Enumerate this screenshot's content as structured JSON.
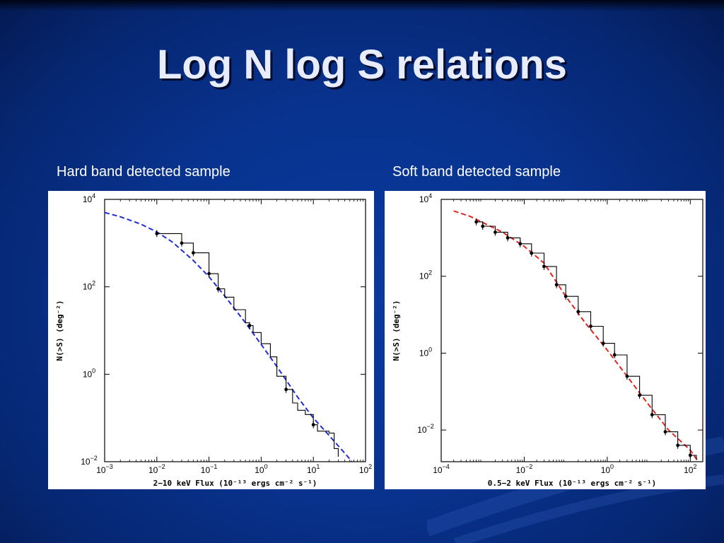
{
  "slide": {
    "title": "Log N log S relations",
    "captions": [
      "Hard band detected sample",
      "Soft band detected sample"
    ]
  },
  "colors": {
    "background": "#08338f",
    "title": "#e8ecff",
    "hard_fit": "#1f2bd6",
    "soft_fit": "#e0241c",
    "data": "#000000"
  },
  "chart_data": [
    {
      "type": "line",
      "scale": "log-log",
      "xlabel": "2−10 keV Flux (10⁻¹³ ergs cm⁻² s⁻¹)",
      "ylabel": "N(>S) (deg⁻²)",
      "xlim": [
        0.001,
        100
      ],
      "ylim": [
        0.01,
        10000
      ],
      "x_ticks": [
        {
          "v": 0.001,
          "base": "10",
          "exp": "−3"
        },
        {
          "v": 0.01,
          "base": "10",
          "exp": "−2"
        },
        {
          "v": 0.1,
          "base": "10",
          "exp": "−1"
        },
        {
          "v": 1,
          "base": "10",
          "exp": "0"
        },
        {
          "v": 10,
          "base": "10",
          "exp": "1"
        },
        {
          "v": 100,
          "base": "10",
          "exp": "2"
        }
      ],
      "y_ticks": [
        {
          "v": 0.01,
          "base": "10",
          "exp": "−2"
        },
        {
          "v": 1,
          "base": "10",
          "exp": "0"
        },
        {
          "v": 100,
          "base": "10",
          "exp": "2"
        },
        {
          "v": 10000,
          "base": "10",
          "exp": "4"
        }
      ],
      "series": [
        {
          "kind": "fit-dashed",
          "color": "#1f2bd6",
          "x": [
            0.001,
            0.002,
            0.005,
            0.01,
            0.02,
            0.05,
            0.1,
            0.2,
            0.5,
            1,
            2,
            5,
            10,
            20,
            50,
            70
          ],
          "y": [
            5000,
            4000,
            2700,
            1800,
            1050,
            400,
            170,
            62,
            15,
            4.8,
            1.5,
            0.3,
            0.1,
            0.04,
            0.0115,
            0.007
          ]
        },
        {
          "kind": "data-step",
          "color": "#000000",
          "x": [
            0.01,
            0.03,
            0.05,
            0.1,
            0.15,
            0.2,
            0.3,
            0.5,
            0.6,
            0.7,
            1,
            1.5,
            2,
            3,
            4,
            5,
            7,
            10,
            12,
            15,
            20,
            25,
            30
          ],
          "y": [
            1650,
            1000,
            600,
            200,
            90,
            58,
            30,
            15,
            13,
            9,
            5,
            2.5,
            0.9,
            0.45,
            0.22,
            0.15,
            0.12,
            0.07,
            0.05,
            0.05,
            0.045,
            0.02,
            0.013
          ]
        },
        {
          "kind": "data-points",
          "color": "#000000",
          "x": [
            0.01,
            0.03,
            0.05,
            0.1,
            0.15,
            0.6,
            3,
            10
          ],
          "y": [
            1650,
            1000,
            600,
            200,
            90,
            13,
            0.45,
            0.07
          ]
        }
      ]
    },
    {
      "type": "line",
      "scale": "log-log",
      "xlabel": "0.5−2 keV Flux (10⁻¹³ ergs cm⁻² s⁻¹)",
      "ylabel": "N(>S) (deg⁻²)",
      "xlim": [
        0.0001,
        200
      ],
      "ylim": [
        0.0015,
        10000
      ],
      "x_ticks": [
        {
          "v": 0.0001,
          "base": "10",
          "exp": "−4"
        },
        {
          "v": 0.01,
          "base": "10",
          "exp": "−2"
        },
        {
          "v": 1,
          "base": "10",
          "exp": "0"
        },
        {
          "v": 100,
          "base": "10",
          "exp": "2"
        }
      ],
      "y_ticks": [
        {
          "v": 0.01,
          "base": "10",
          "exp": "−2"
        },
        {
          "v": 1,
          "base": "10",
          "exp": "0"
        },
        {
          "v": 100,
          "base": "10",
          "exp": "2"
        },
        {
          "v": 10000,
          "base": "10",
          "exp": "4"
        }
      ],
      "series": [
        {
          "kind": "fit-dashed",
          "color": "#e0241c",
          "x": [
            0.0002,
            0.0005,
            0.001,
            0.003,
            0.01,
            0.03,
            0.1,
            0.3,
            1,
            3,
            10,
            30,
            100,
            150
          ],
          "y": [
            5000,
            3600,
            2500,
            1400,
            600,
            220,
            30,
            6,
            1.2,
            0.25,
            0.045,
            0.01,
            0.003,
            0.0016
          ]
        },
        {
          "kind": "data-step",
          "color": "#000000",
          "x": [
            0.0007,
            0.001,
            0.002,
            0.004,
            0.008,
            0.015,
            0.03,
            0.06,
            0.1,
            0.2,
            0.4,
            0.8,
            1.5,
            3,
            6,
            12,
            25,
            50,
            100,
            140
          ],
          "y": [
            2600,
            2000,
            1400,
            1000,
            700,
            400,
            180,
            60,
            30,
            12,
            5,
            1.8,
            0.9,
            0.25,
            0.08,
            0.025,
            0.009,
            0.004,
            0.0022,
            0.0017
          ]
        },
        {
          "kind": "data-points",
          "color": "#000000",
          "x": [
            0.0007,
            0.001,
            0.002,
            0.004,
            0.008,
            0.015,
            0.03,
            0.06,
            0.1,
            0.2,
            0.4,
            0.8,
            1.5,
            3,
            6,
            12,
            25,
            50,
            100
          ],
          "y": [
            2600,
            2000,
            1400,
            1000,
            700,
            400,
            180,
            60,
            30,
            12,
            5,
            1.8,
            0.9,
            0.25,
            0.08,
            0.025,
            0.009,
            0.004,
            0.0022
          ]
        }
      ]
    }
  ]
}
